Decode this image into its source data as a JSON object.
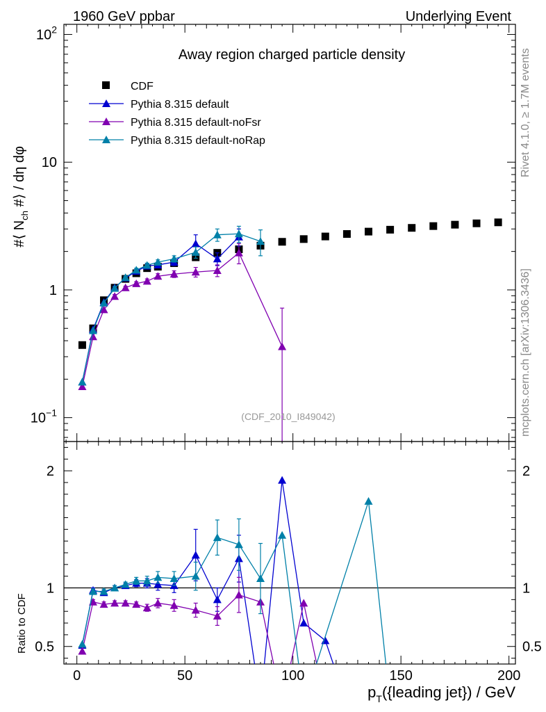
{
  "header": {
    "left": "1960 GeV ppbar",
    "right": "Underlying Event"
  },
  "side_labels": {
    "rivet": "Rivet 4.1.0, ≥ 1.7M events",
    "mcplots": "mcplots.cern.ch [arXiv:1306.3436]"
  },
  "chart_data": {
    "type": "line",
    "title": "Away region charged particle density",
    "analysis_id": "(CDF_2010_I849042)",
    "xlabel": "p_T({leading jet}) / GeV",
    "xlabel_main": "p",
    "xlabel_sub": "T",
    "xlabel_rest": "({leading jet}) / GeV",
    "ylabel": "#⟨ N_ch #⟩ / dη dφ",
    "ylabel_parts": {
      "a": "#",
      "b": "⟨ N",
      "sub": "ch",
      "c": " #⟩ / dη dφ"
    },
    "xlim": [
      -6,
      203
    ],
    "ylim": [
      0.065,
      120
    ],
    "yscale": "log",
    "xticks": [
      0,
      50,
      100,
      150,
      200
    ],
    "yticks": [
      {
        "base": "10",
        "exp": "−1",
        "value": 0.1
      },
      {
        "base": "1",
        "exp": "",
        "value": 1
      },
      {
        "base": "10",
        "exp": "",
        "value": 10
      },
      {
        "base": "10",
        "exp": "2",
        "value": 100
      }
    ],
    "series": [
      {
        "name": "CDF",
        "color": "#000000",
        "marker": "square",
        "x": [
          2.5,
          7.5,
          12.5,
          17.5,
          22.5,
          27.5,
          32.5,
          37.5,
          45,
          55,
          65,
          75,
          85,
          95,
          105,
          115,
          125,
          135,
          145,
          155,
          165,
          175,
          185,
          195
        ],
        "y": [
          0.37,
          0.5,
          0.83,
          1.04,
          1.22,
          1.35,
          1.48,
          1.52,
          1.62,
          1.8,
          1.95,
          2.08,
          2.22,
          2.38,
          2.5,
          2.62,
          2.74,
          2.86,
          2.96,
          3.06,
          3.16,
          3.24,
          3.32,
          3.38
        ]
      },
      {
        "name": "Pythia 8.315 default",
        "color": "#0000d0",
        "marker": "triangle",
        "x": [
          2.5,
          7.5,
          12.5,
          17.5,
          22.5,
          27.5,
          32.5,
          37.5,
          45,
          55,
          65,
          75
        ],
        "y": [
          0.19,
          0.49,
          0.8,
          1.04,
          1.24,
          1.4,
          1.54,
          1.57,
          1.65,
          2.3,
          1.75,
          2.6
        ],
        "err": [
          0.005,
          0.01,
          0.02,
          0.03,
          0.03,
          0.05,
          0.06,
          0.07,
          0.1,
          0.4,
          0.2,
          0.4
        ]
      },
      {
        "name": "Pythia 8.315 default-noFsr",
        "color": "#8000b0",
        "marker": "triangle",
        "x": [
          2.5,
          7.5,
          12.5,
          17.5,
          22.5,
          27.5,
          32.5,
          37.5,
          45,
          55,
          65,
          75,
          95
        ],
        "y": [
          0.175,
          0.43,
          0.7,
          0.89,
          1.04,
          1.12,
          1.17,
          1.28,
          1.33,
          1.38,
          1.42,
          1.95,
          0.36
        ],
        "err": [
          0.005,
          0.01,
          0.02,
          0.03,
          0.03,
          0.04,
          0.05,
          0.06,
          0.08,
          0.12,
          0.15,
          0.35,
          0.36
        ]
      },
      {
        "name": "Pythia 8.315 default-noRap",
        "color": "#0080a8",
        "marker": "triangle",
        "x": [
          2.5,
          7.5,
          12.5,
          17.5,
          22.5,
          27.5,
          32.5,
          37.5,
          45,
          55,
          65,
          75,
          85
        ],
        "y": [
          0.19,
          0.48,
          0.79,
          1.03,
          1.25,
          1.43,
          1.56,
          1.65,
          1.75,
          1.97,
          2.7,
          2.75,
          2.4
        ],
        "err": [
          0.005,
          0.01,
          0.02,
          0.03,
          0.03,
          0.05,
          0.06,
          0.07,
          0.1,
          0.2,
          0.3,
          0.4,
          0.55
        ]
      }
    ],
    "ratio": {
      "ylabel": "Ratio to CDF",
      "ylim": [
        0.35,
        2.25
      ],
      "ytick_labels": [
        "0.5",
        "1",
        "2"
      ],
      "ytick_values": [
        0.5,
        1,
        2
      ],
      "series": [
        {
          "name": "Pythia 8.315 default",
          "color": "#0000d0",
          "x": [
            2.5,
            7.5,
            12.5,
            17.5,
            22.5,
            27.5,
            32.5,
            37.5,
            45,
            55,
            65,
            75,
            85,
            95,
            105,
            115,
            125
          ],
          "y": [
            0.51,
            0.98,
            0.96,
            1.0,
            1.02,
            1.04,
            1.04,
            1.03,
            1.02,
            1.28,
            0.9,
            1.25,
            0.01,
            1.92,
            0.7,
            0.55,
            0.01
          ],
          "err": [
            0.01,
            0.02,
            0.02,
            0.02,
            0.02,
            0.03,
            0.04,
            0.05,
            0.06,
            0.22,
            0.1,
            0.2,
            0,
            0,
            0,
            0,
            0
          ]
        },
        {
          "name": "Pythia 8.315 default-noFsr",
          "color": "#8000b0",
          "x": [
            2.5,
            7.5,
            12.5,
            17.5,
            22.5,
            27.5,
            32.5,
            37.5,
            45,
            55,
            65,
            75,
            85,
            95,
            105,
            115
          ],
          "y": [
            0.46,
            0.88,
            0.86,
            0.87,
            0.87,
            0.86,
            0.83,
            0.87,
            0.85,
            0.81,
            0.76,
            0.94,
            0.88,
            0.01,
            0.87,
            0.01
          ],
          "err": [
            0.01,
            0.02,
            0.02,
            0.02,
            0.02,
            0.02,
            0.03,
            0.04,
            0.05,
            0.06,
            0.08,
            0.15,
            0,
            0,
            0,
            0
          ]
        },
        {
          "name": "Pythia 8.315 default-noRap",
          "color": "#0080a8",
          "x": [
            2.5,
            7.5,
            12.5,
            17.5,
            22.5,
            27.5,
            32.5,
            37.5,
            45,
            55,
            65,
            75,
            85,
            95,
            105,
            135,
            145
          ],
          "y": [
            0.52,
            0.97,
            0.97,
            1.0,
            1.03,
            1.06,
            1.06,
            1.09,
            1.08,
            1.1,
            1.43,
            1.37,
            1.08,
            1.45,
            0.01,
            1.74,
            0.01
          ],
          "err": [
            0.01,
            0.02,
            0.02,
            0.02,
            0.02,
            0.03,
            0.04,
            0.05,
            0.06,
            0.12,
            0.15,
            0.22,
            0.3,
            0,
            0,
            0,
            0
          ]
        }
      ]
    }
  }
}
